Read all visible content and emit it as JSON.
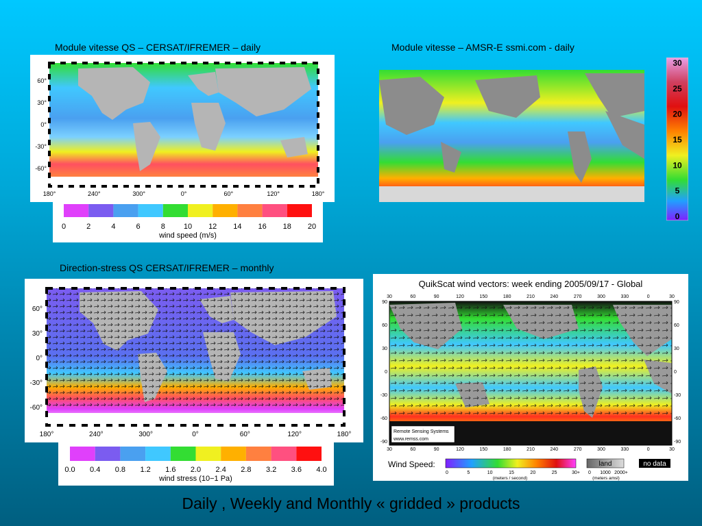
{
  "captions": {
    "top_left": "Module vitesse QS  – CERSAT/IFREMER – daily",
    "top_right": "Module vitesse – AMSR-E  ssmi.com  - daily",
    "bottom_left": "Direction-stress QS  CERSAT/IFREMER – monthly"
  },
  "footer": "Daily ,  Weekly and Monthly  « gridded » products",
  "map1": {
    "lat_labels": [
      "60°",
      "30°",
      "0°",
      "-30°",
      "-60°"
    ],
    "lon_labels": [
      "180°",
      "240°",
      "300°",
      "0°",
      "60°",
      "120°",
      "180°"
    ],
    "colorbar": {
      "colors": [
        "#e040fb",
        "#7b5cf0",
        "#4aa0f0",
        "#40c8ff",
        "#33dd33",
        "#f0f020",
        "#ffb000",
        "#ff8040",
        "#ff5080",
        "#ff1010"
      ],
      "ticks": [
        "0",
        "2",
        "4",
        "6",
        "8",
        "10",
        "12",
        "14",
        "16",
        "18",
        "20"
      ],
      "label": "wind speed (m/s)"
    }
  },
  "map2": {
    "colorbar": {
      "ticks": [
        "30",
        "25",
        "20",
        "15",
        "10",
        "5",
        "0"
      ]
    }
  },
  "map3": {
    "lat_labels": [
      "60°",
      "30°",
      "0°",
      "-30°",
      "-60°"
    ],
    "lon_labels": [
      "180°",
      "240°",
      "300°",
      "0°",
      "60°",
      "120°",
      "180°"
    ],
    "colorbar": {
      "colors": [
        "#e040fb",
        "#7b5cf0",
        "#4aa0f0",
        "#40c8ff",
        "#33dd33",
        "#f0f020",
        "#ffb000",
        "#ff8040",
        "#ff5080",
        "#ff1010"
      ],
      "ticks": [
        "0.0",
        "0.4",
        "0.8",
        "1.2",
        "1.6",
        "2.0",
        "2.4",
        "2.8",
        "3.2",
        "3.6",
        "4.0"
      ],
      "label": "wind stress (10−1 Pa)"
    }
  },
  "map4": {
    "title": "QuikScat wind vectors: week ending 2005/09/17 - Global",
    "lon_labels": [
      "30",
      "60",
      "90",
      "120",
      "150",
      "180",
      "210",
      "240",
      "270",
      "300",
      "330",
      "0",
      "30"
    ],
    "lat_labels": [
      "90",
      "60",
      "30",
      "0",
      "-30",
      "-60",
      "-90"
    ],
    "credit_line1": "Remote Sensing Systems",
    "credit_line2": "www.remss.com",
    "legend": {
      "wind_label": "Wind Speed:",
      "wind_ticks": [
        "0",
        "5",
        "10",
        "15",
        "20",
        "25",
        "30+"
      ],
      "wind_units": "(meters / second)",
      "land_label": "land",
      "land_ticks": [
        "0",
        "1000",
        "2000+"
      ],
      "land_units": "(meters amsl)",
      "nodata_label": "no data"
    }
  }
}
